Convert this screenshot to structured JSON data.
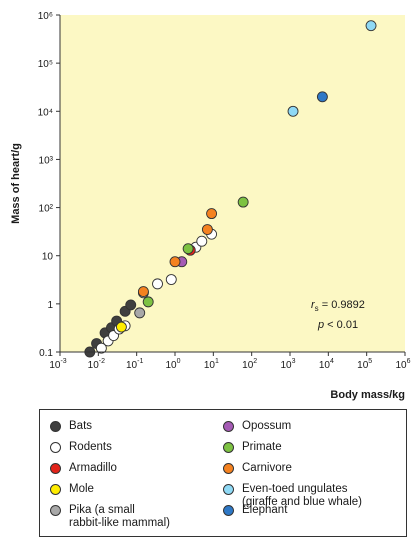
{
  "chart_data": {
    "type": "scatter",
    "xscale": "log",
    "yscale": "log",
    "xlim": [
      0.001,
      1000000
    ],
    "ylim": [
      0.1,
      1000000
    ],
    "xlabel": "Body mass/kg",
    "ylabel": "Mass of heart/g",
    "x_ticks": [
      {
        "base": "10",
        "exp": "-3"
      },
      {
        "base": "10",
        "exp": "-2"
      },
      {
        "base": "10",
        "exp": "-1"
      },
      {
        "base": "10",
        "exp": "0"
      },
      {
        "base": "10",
        "exp": "1"
      },
      {
        "base": "10",
        "exp": "2"
      },
      {
        "base": "10",
        "exp": "3"
      },
      {
        "base": "10",
        "exp": "4"
      },
      {
        "base": "10",
        "exp": "5"
      },
      {
        "base": "10",
        "exp": "6"
      }
    ],
    "y_ticks": [
      "0.1",
      "1",
      "10",
      "10²",
      "10³",
      "10⁴",
      "10⁵",
      "10⁶"
    ],
    "annotation": {
      "rs_label": "r",
      "rs_sub": "s",
      "rs_value": " = 0.9892",
      "p_label": "p",
      "p_value": " < 0.01"
    },
    "background_color": "#fcf8c4",
    "series": [
      {
        "name": "Bats",
        "color": "#3f3f3f",
        "points": [
          [
            0.006,
            0.1
          ],
          [
            0.009,
            0.15
          ],
          [
            0.015,
            0.25
          ],
          [
            0.022,
            0.32
          ],
          [
            0.03,
            0.44
          ],
          [
            0.05,
            0.7
          ],
          [
            0.07,
            0.95
          ]
        ]
      },
      {
        "name": "Rodents",
        "color": "#ffffff",
        "points": [
          [
            0.012,
            0.12
          ],
          [
            0.018,
            0.17
          ],
          [
            0.025,
            0.22
          ],
          [
            0.035,
            0.3
          ],
          [
            0.05,
            0.35
          ],
          [
            0.15,
            1.7
          ],
          [
            0.35,
            2.6
          ],
          [
            0.8,
            3.2
          ],
          [
            3.5,
            15
          ],
          [
            5,
            20
          ],
          [
            9,
            28
          ]
        ]
      },
      {
        "name": "Armadillo",
        "color": "#e2231a",
        "points": [
          [
            2.5,
            13
          ]
        ]
      },
      {
        "name": "Mole",
        "color": "#ffed00",
        "points": [
          [
            0.04,
            0.33
          ]
        ]
      },
      {
        "name": "Pika (a small\nrabbit-like mammal)",
        "color": "#a8a8a8",
        "points": [
          [
            0.12,
            0.65
          ]
        ]
      },
      {
        "name": "Opossum",
        "color": "#a55bb5",
        "points": [
          [
            1.5,
            7.5
          ]
        ]
      },
      {
        "name": "Primate",
        "color": "#7dc242",
        "points": [
          [
            0.2,
            1.1
          ],
          [
            2.2,
            14
          ],
          [
            60,
            130
          ]
        ]
      },
      {
        "name": "Carnivore",
        "color": "#f58220",
        "points": [
          [
            0.15,
            1.8
          ],
          [
            1,
            7.5
          ],
          [
            7,
            35
          ],
          [
            9,
            75
          ]
        ]
      },
      {
        "name": "Even-toed ungulates\n(giraffe and blue whale)",
        "color": "#8fd9f5",
        "points": [
          [
            1200,
            10000
          ],
          [
            130000,
            600000
          ]
        ]
      },
      {
        "name": "Elephant",
        "color": "#2e78c6",
        "points": [
          [
            7000,
            20000
          ]
        ]
      }
    ]
  }
}
